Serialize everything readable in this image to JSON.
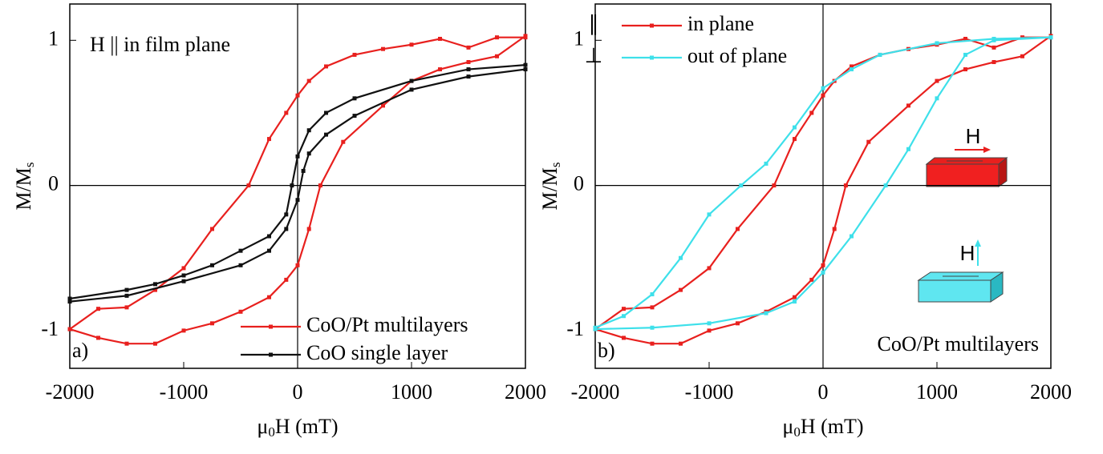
{
  "chart_data": [
    {
      "type": "line",
      "ylabel": [
        "M/M",
        "s"
      ],
      "xlabel": [
        "μ",
        "0",
        "H (mT)"
      ],
      "xlim": [
        -2000,
        2000
      ],
      "ylim": [
        -1.26,
        1.25
      ],
      "xticks": [
        -2000,
        -1000,
        0,
        1000,
        2000
      ],
      "yticks": [
        -1,
        0,
        1
      ],
      "annotations": [
        "H || in film plane",
        "a)"
      ],
      "series": [
        {
          "name": "CoO/Pt multilayers",
          "color": "#e8201e",
          "x": [
            2000,
            1750,
            1500,
            1250,
            1000,
            750,
            500,
            250,
            100,
            0,
            -100,
            -250,
            -430,
            -750,
            -1000,
            -1250,
            -1500,
            -1750,
            -2000,
            -2000,
            -1750,
            -1500,
            -1250,
            -1000,
            -750,
            -500,
            -250,
            -100,
            0,
            100,
            200,
            400,
            750,
            1000,
            1250,
            1500,
            1750,
            2000
          ],
          "values": [
            1.02,
            1.02,
            0.95,
            1.01,
            0.97,
            0.94,
            0.9,
            0.82,
            0.72,
            0.62,
            0.5,
            0.32,
            0,
            -0.3,
            -0.57,
            -0.72,
            -0.84,
            -0.85,
            -0.99,
            -0.99,
            -1.05,
            -1.09,
            -1.09,
            -1,
            -0.95,
            -0.87,
            -0.77,
            -0.65,
            -0.55,
            -0.3,
            0,
            0.3,
            0.55,
            0.72,
            0.8,
            0.85,
            0.89,
            1.03
          ]
        },
        {
          "name": "CoO single layer",
          "color": "#111111",
          "x": [
            2000,
            1500,
            1000,
            500,
            250,
            100,
            0,
            -50,
            -100,
            -250,
            -500,
            -750,
            -1000,
            -1250,
            -1500,
            -2000,
            -2000,
            -1500,
            -1000,
            -500,
            -250,
            -100,
            0,
            50,
            100,
            250,
            500,
            1000,
            1500,
            2000
          ],
          "values": [
            0.83,
            0.8,
            0.72,
            0.6,
            0.5,
            0.38,
            0.2,
            0,
            -0.2,
            -0.35,
            -0.45,
            -0.55,
            -0.62,
            -0.68,
            -0.72,
            -0.78,
            -0.8,
            -0.76,
            -0.66,
            -0.55,
            -0.45,
            -0.3,
            -0.1,
            0.1,
            0.22,
            0.35,
            0.48,
            0.66,
            0.75,
            0.8
          ]
        }
      ]
    },
    {
      "type": "line",
      "ylabel": [
        "M/M",
        "s"
      ],
      "xlabel": [
        "μ",
        "0",
        "H (mT)"
      ],
      "xlim": [
        -2000,
        2000
      ],
      "ylim": [
        -1.26,
        1.25
      ],
      "xticks": [
        -2000,
        -1000,
        0,
        1000,
        2000
      ],
      "yticks": [
        -1,
        0,
        1
      ],
      "annotations": [
        "b)",
        "CoO/Pt multilayers"
      ],
      "icon_labels": [
        "H",
        "H"
      ],
      "series": [
        {
          "name": "in plane",
          "symbol": "∥",
          "color": "#e8201e",
          "x": [
            2000,
            1750,
            1500,
            1250,
            1000,
            750,
            500,
            250,
            100,
            0,
            -100,
            -250,
            -430,
            -750,
            -1000,
            -1250,
            -1500,
            -1750,
            -2000,
            -2000,
            -1750,
            -1500,
            -1250,
            -1000,
            -750,
            -500,
            -250,
            -100,
            0,
            100,
            200,
            400,
            750,
            1000,
            1250,
            1500,
            1750,
            2000
          ],
          "values": [
            1.02,
            1.02,
            0.95,
            1.01,
            0.97,
            0.94,
            0.9,
            0.82,
            0.72,
            0.62,
            0.5,
            0.32,
            0,
            -0.3,
            -0.57,
            -0.72,
            -0.84,
            -0.85,
            -0.99,
            -0.99,
            -1.05,
            -1.09,
            -1.09,
            -1,
            -0.95,
            -0.87,
            -0.77,
            -0.65,
            -0.55,
            -0.3,
            0,
            0.3,
            0.55,
            0.72,
            0.8,
            0.85,
            0.89,
            1.03
          ]
        },
        {
          "name": "out of plane",
          "symbol": "⊥",
          "color": "#3ee0ea",
          "x": [
            2000,
            1500,
            1000,
            500,
            250,
            0,
            -250,
            -500,
            -720,
            -1000,
            -1250,
            -1500,
            -1750,
            -2000,
            -2000,
            -1500,
            -1000,
            -500,
            -250,
            0,
            250,
            550,
            750,
            1000,
            1250,
            1500,
            2000
          ],
          "values": [
            1.02,
            1.01,
            0.98,
            0.9,
            0.8,
            0.67,
            0.4,
            0.15,
            0,
            -0.2,
            -0.5,
            -0.75,
            -0.9,
            -0.98,
            -0.99,
            -0.98,
            -0.95,
            -0.88,
            -0.8,
            -0.6,
            -0.35,
            0,
            0.25,
            0.6,
            0.9,
            1,
            1.02
          ]
        }
      ]
    }
  ]
}
